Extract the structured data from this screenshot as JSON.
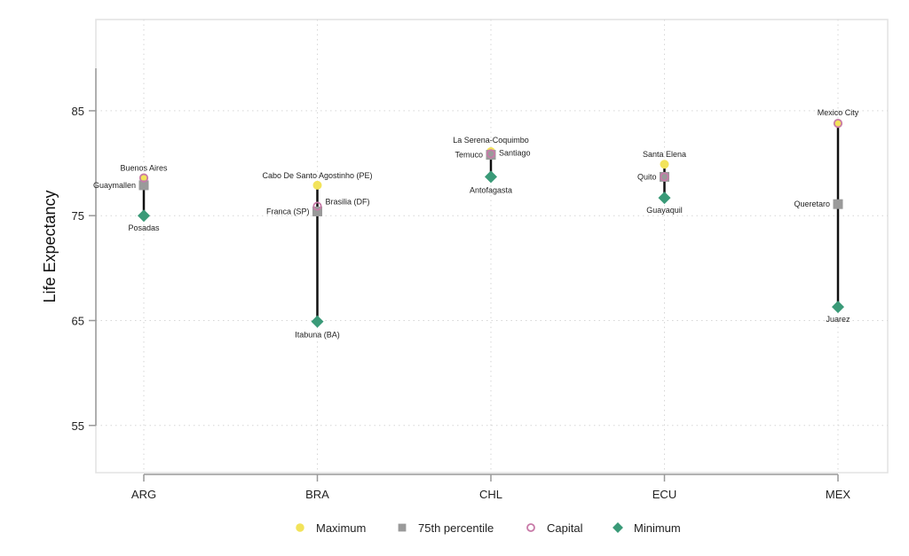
{
  "chart_data": {
    "type": "scatter",
    "title": "",
    "xlabel": "",
    "ylabel": "Life Expectancy",
    "ylim": [
      50.5,
      93.7
    ],
    "yticks": [
      55,
      65,
      75,
      85
    ],
    "grid": true,
    "legend_position": "bottom",
    "categories": [
      "ARG",
      "BRA",
      "CHL",
      "ECU",
      "MEX"
    ],
    "series": [
      {
        "name": "Maximum",
        "marker": "circle",
        "color": "#f2e35a",
        "values": [
          78.6,
          77.9,
          81.1,
          79.9,
          83.8
        ],
        "labels": [
          "Buenos Aires",
          "Cabo De Santo Agostinho (PE)",
          "La Serena-Coquimbo",
          "Santa Elena",
          "Mexico City"
        ]
      },
      {
        "name": "75th percentile",
        "marker": "square",
        "color": "#9a9a9a",
        "values": [
          77.9,
          75.4,
          80.8,
          78.7,
          76.1
        ],
        "labels": [
          "Guaymallen",
          "Franca (SP)",
          "Temuco",
          "",
          "Queretaro"
        ]
      },
      {
        "name": "Capital",
        "marker": "hollow-circle",
        "color": "#c87aa8",
        "values": [
          78.6,
          75.9,
          80.9,
          78.7,
          83.8
        ],
        "labels": [
          "",
          "Brasilia (DF)",
          "Santiago",
          "Quito",
          ""
        ]
      },
      {
        "name": "Minimum",
        "marker": "diamond",
        "color": "#3a9a78",
        "values": [
          75.0,
          64.9,
          78.7,
          76.7,
          66.3
        ],
        "labels": [
          "Posadas",
          "Itabuna (BA)",
          "Antofagasta",
          "Guayaquil",
          "Juarez"
        ]
      }
    ]
  }
}
